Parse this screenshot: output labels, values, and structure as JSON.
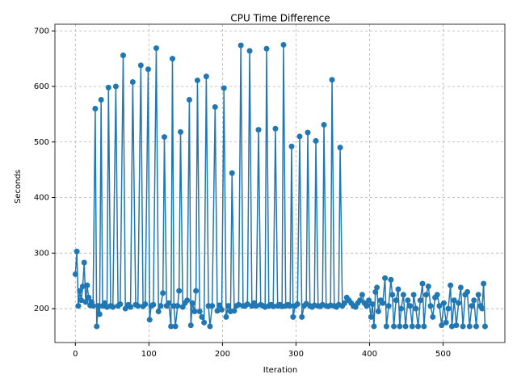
{
  "chart_data": {
    "type": "line",
    "title": "CPU Time Difference",
    "x_label": "Iteration",
    "y_label": "Seconds",
    "xlim": [
      -27.8,
      584
    ],
    "ylim": [
      139,
      712
    ],
    "xticks": [
      0,
      100,
      200,
      300,
      400,
      500
    ],
    "yticks": [
      200,
      300,
      400,
      500,
      600,
      700
    ],
    "grid": true,
    "markers": true,
    "x": [
      0,
      2,
      4,
      6,
      8,
      10,
      12,
      14,
      16,
      18,
      20,
      22,
      24,
      27,
      29,
      31,
      33,
      35,
      37,
      40,
      43,
      45,
      48,
      51,
      55,
      58,
      61,
      65,
      68,
      72,
      75,
      78,
      82,
      85,
      89,
      92,
      95,
      99,
      101,
      103,
      106,
      110,
      113,
      116,
      119,
      121,
      124,
      127,
      130,
      132,
      134,
      136,
      139,
      141,
      143,
      146,
      149,
      152,
      155,
      157,
      159,
      162,
      164,
      166,
      169,
      172,
      175,
      178,
      181,
      183,
      186,
      190,
      193,
      196,
      199,
      202,
      205,
      208,
      211,
      213,
      216,
      219,
      222,
      225,
      228,
      231,
      234,
      237,
      240,
      243,
      246,
      249,
      252,
      255,
      258,
      260,
      263,
      266,
      269,
      272,
      275,
      278,
      281,
      283,
      286,
      289,
      292,
      294,
      296,
      299,
      302,
      305,
      308,
      311,
      314,
      316,
      319,
      322,
      325,
      327,
      330,
      333,
      336,
      338,
      341,
      344,
      347,
      349,
      352,
      355,
      358,
      360,
      363,
      366,
      369,
      372,
      375,
      378,
      381,
      384,
      387,
      390,
      393,
      396,
      399,
      402,
      404,
      406,
      408,
      410,
      412,
      415,
      418,
      421,
      423,
      426,
      429,
      431,
      433,
      436,
      439,
      441,
      443,
      446,
      449,
      452,
      455,
      458,
      460,
      463,
      466,
      469,
      472,
      474,
      477,
      480,
      483,
      486,
      489,
      492,
      495,
      498,
      501,
      504,
      507,
      510,
      512,
      515,
      518,
      521,
      524,
      527,
      530,
      533,
      536,
      539,
      542,
      545,
      548,
      551,
      553,
      555,
      557
    ],
    "series": [
      {
        "color": "#1f77b4",
        "values": [
          262,
          303,
          205,
          232,
          215,
          240,
          283,
          212,
          242,
          220,
          206,
          212,
          205,
          560,
          168,
          205,
          190,
          576,
          205,
          210,
          203,
          598,
          205,
          203,
          600,
          205,
          208,
          656,
          200,
          207,
          203,
          608,
          207,
          205,
          638,
          204,
          208,
          631,
          180,
          205,
          207,
          669,
          195,
          205,
          228,
          509,
          205,
          210,
          168,
          650,
          205,
          168,
          205,
          232,
          518,
          203,
          210,
          215,
          576,
          170,
          210,
          195,
          232,
          611,
          195,
          185,
          175,
          618,
          205,
          168,
          205,
          563,
          196,
          206,
          198,
          597,
          185,
          205,
          195,
          444,
          196,
          205,
          207,
          674,
          205,
          205,
          208,
          664,
          205,
          210,
          205,
          522,
          207,
          205,
          203,
          668,
          205,
          207,
          204,
          524,
          205,
          207,
          204,
          675,
          205,
          207,
          205,
          492,
          185,
          205,
          208,
          510,
          185,
          205,
          209,
          517,
          205,
          203,
          206,
          502,
          205,
          204,
          207,
          531,
          205,
          204,
          206,
          612,
          205,
          203,
          207,
          490,
          205,
          210,
          220,
          215,
          210,
          205,
          203,
          210,
          215,
          225,
          210,
          205,
          215,
          185,
          208,
          168,
          230,
          238,
          195,
          215,
          210,
          255,
          168,
          205,
          252,
          225,
          168,
          215,
          235,
          168,
          200,
          225,
          168,
          215,
          205,
          168,
          225,
          200,
          168,
          215,
          245,
          168,
          225,
          240,
          205,
          185,
          220,
          225,
          205,
          170,
          210,
          175,
          200,
          242,
          168,
          215,
          170,
          210,
          238,
          168,
          225,
          230,
          168,
          205,
          215,
          168,
          225,
          205,
          200,
          245,
          168
        ]
      }
    ]
  }
}
